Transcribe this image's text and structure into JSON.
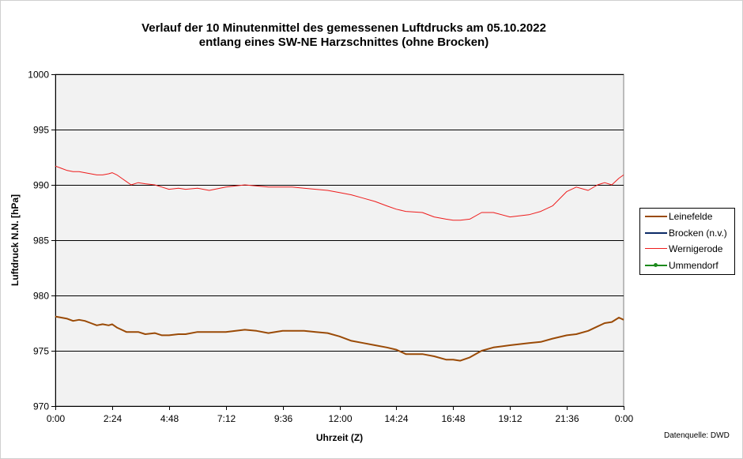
{
  "colors": {
    "leinefelde": "#9a4a06",
    "brocken": "#0b2a66",
    "wernigerode": "#ee1c1c",
    "ummendorf": "#1c8a1c",
    "plot_bg": "#f2f2f2"
  },
  "chart_data": {
    "type": "line",
    "title_line1": "Verlauf der 10 Minutenmittel des gemessenen Luftdrucks am 05.10.2022",
    "title_line2": "entlang eines SW-NE Harzschnittes (ohne Brocken)",
    "xlabel": "Uhrzeit (Z)",
    "ylabel": "Luftdruck N.N. [hPa]",
    "ylim": [
      970,
      1000
    ],
    "yticks": [
      970,
      975,
      980,
      985,
      990,
      995,
      1000
    ],
    "xlim": [
      0,
      24
    ],
    "xticks": [
      0,
      2.4,
      4.8,
      7.2,
      9.6,
      12,
      14.4,
      16.8,
      19.2,
      21.6,
      24
    ],
    "xtick_labels": [
      "0:00",
      "2:24",
      "4:48",
      "7:12",
      "9:36",
      "12:00",
      "14:24",
      "16:48",
      "19:12",
      "21:36",
      "0:00"
    ],
    "grid": "horizontal",
    "legend_position": "right",
    "source": "Datenquelle: DWD",
    "series": [
      {
        "name": "Leinefelde",
        "color_key": "leinefelde",
        "x": [
          0,
          0.25,
          0.5,
          0.75,
          1,
          1.25,
          1.5,
          1.75,
          2,
          2.25,
          2.4,
          2.6,
          2.8,
          3,
          3.2,
          3.5,
          3.8,
          4.2,
          4.5,
          4.8,
          5.2,
          5.5,
          6,
          6.5,
          7.2,
          8,
          8.5,
          9,
          9.6,
          10,
          10.5,
          11,
          11.5,
          12,
          12.5,
          13,
          13.5,
          14,
          14.4,
          14.8,
          15.5,
          16,
          16.5,
          16.8,
          17.1,
          17.5,
          18,
          18.5,
          19.2,
          20,
          20.5,
          21,
          21.6,
          22,
          22.5,
          22.9,
          23.2,
          23.5,
          23.8,
          24
        ],
        "y": [
          978.1,
          978.0,
          977.9,
          977.7,
          977.8,
          977.7,
          977.5,
          977.3,
          977.4,
          977.3,
          977.4,
          977.1,
          976.9,
          976.7,
          976.7,
          976.7,
          976.5,
          976.6,
          976.4,
          976.4,
          976.5,
          976.5,
          976.7,
          976.7,
          976.7,
          976.9,
          976.8,
          976.6,
          976.8,
          976.8,
          976.8,
          976.7,
          976.6,
          976.3,
          975.9,
          975.7,
          975.5,
          975.3,
          975.1,
          974.7,
          974.7,
          974.5,
          974.2,
          974.2,
          974.1,
          974.4,
          975.0,
          975.3,
          975.5,
          975.7,
          975.8,
          976.1,
          976.4,
          976.5,
          976.8,
          977.2,
          977.5,
          977.6,
          978.0,
          977.8
        ]
      },
      {
        "name": "Brocken (n.v.)",
        "color_key": "brocken",
        "x": [],
        "y": []
      },
      {
        "name": "Wernigerode",
        "color_key": "wernigerode",
        "x": [
          0,
          0.25,
          0.5,
          0.75,
          1,
          1.25,
          1.5,
          1.75,
          2,
          2.25,
          2.4,
          2.6,
          2.8,
          3,
          3.2,
          3.5,
          3.8,
          4.2,
          4.5,
          4.8,
          5.2,
          5.5,
          6,
          6.5,
          7.2,
          8,
          8.5,
          9,
          9.6,
          10,
          10.5,
          11,
          11.5,
          12,
          12.5,
          13,
          13.5,
          14,
          14.4,
          14.8,
          15.5,
          16,
          16.5,
          16.8,
          17.1,
          17.5,
          18,
          18.5,
          19.2,
          20,
          20.5,
          21,
          21.6,
          22,
          22.5,
          22.9,
          23.2,
          23.5,
          23.8,
          24
        ],
        "y": [
          991.7,
          991.5,
          991.3,
          991.2,
          991.2,
          991.1,
          991.0,
          990.9,
          990.9,
          991.0,
          991.1,
          990.9,
          990.6,
          990.3,
          990.0,
          990.2,
          990.1,
          990.0,
          989.8,
          989.6,
          989.7,
          989.6,
          989.7,
          989.5,
          989.8,
          990.0,
          989.9,
          989.8,
          989.8,
          989.8,
          989.7,
          989.6,
          989.5,
          989.3,
          989.1,
          988.8,
          988.5,
          988.1,
          987.8,
          987.6,
          987.5,
          987.1,
          986.9,
          986.8,
          986.8,
          986.9,
          987.5,
          987.5,
          987.1,
          987.3,
          987.6,
          988.1,
          989.4,
          989.8,
          989.5,
          990.0,
          990.2,
          990.0,
          990.6,
          990.9
        ]
      },
      {
        "name": "Ummendorf",
        "color_key": "ummendorf",
        "x": [],
        "y": []
      }
    ]
  }
}
